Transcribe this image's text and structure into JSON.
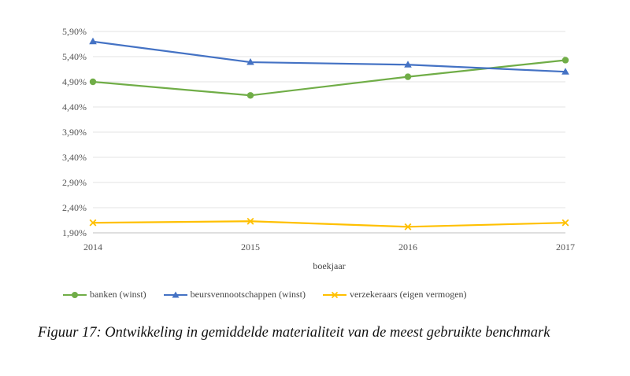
{
  "chart_data": {
    "type": "line",
    "xlabel": "boekjaar",
    "ylabel": "",
    "categories": [
      "2014",
      "2015",
      "2016",
      "2017"
    ],
    "ylim": [
      1.9,
      5.9
    ],
    "yticks": [
      "5,90%",
      "5,40%",
      "4,90%",
      "4,40%",
      "3,90%",
      "3,40%",
      "2,90%",
      "2,40%",
      "1,90%"
    ],
    "ytick_values": [
      5.9,
      5.4,
      4.9,
      4.4,
      3.9,
      3.4,
      2.9,
      2.4,
      1.9
    ],
    "grid": true,
    "legend_position": "bottom",
    "series": [
      {
        "name": "banken (winst)",
        "values": [
          4.9,
          4.63,
          5.0,
          5.33
        ],
        "color": "#70ad47",
        "marker": "circle"
      },
      {
        "name": "beursvennootschappen (winst)",
        "values": [
          5.7,
          5.29,
          5.24,
          5.1
        ],
        "color": "#4472c4",
        "marker": "triangle"
      },
      {
        "name": "verzekeraars (eigen vermogen)",
        "values": [
          2.1,
          2.13,
          2.02,
          2.1
        ],
        "color": "#ffc000",
        "marker": "x"
      }
    ]
  },
  "caption": "Figuur 17: Ontwikkeling in gemiddelde materialiteit van de meest gebruikte benchmark"
}
